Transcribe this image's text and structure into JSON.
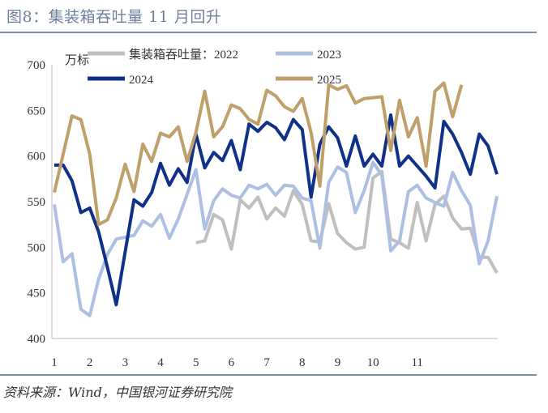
{
  "title": "图8：集装箱吞吐量 11 月回升",
  "source": "资料来源：Wind，中国银河证券研究院",
  "chart_data": {
    "type": "line",
    "title": "",
    "ylabel": "万标",
    "xlabel": "",
    "ylim": [
      400,
      700
    ],
    "yticks": [
      "400",
      "450",
      "500",
      "550",
      "600",
      "650",
      "700"
    ],
    "xtick_labels": [
      "1",
      "2",
      "3",
      "4",
      "5",
      "6",
      "7",
      "8",
      "9",
      "10",
      "11"
    ],
    "xtick_week_index": [
      0,
      4,
      8,
      12,
      16,
      20,
      24,
      28,
      32,
      36,
      41
    ],
    "x_unit": "week of year",
    "grid": false,
    "legend_position": "top",
    "series": [
      {
        "name": "集装箱吞吐量：2022",
        "color": "#bfbfbf",
        "start_week_index": 16,
        "values": [
          505,
          507,
          536,
          530,
          498,
          552,
          543,
          555,
          531,
          543,
          534,
          562,
          547,
          507,
          506,
          548,
          515,
          505,
          498,
          500,
          576,
          583,
          509,
          505,
          499,
          549,
          507,
          547,
          556,
          532,
          520,
          521,
          489,
          489,
          472
        ]
      },
      {
        "name": "2023",
        "color": "#adc0e4",
        "start_week_index": 0,
        "values": [
          547,
          484,
          493,
          432,
          425,
          465,
          492,
          509,
          511,
          513,
          529,
          523,
          536,
          510,
          531,
          558,
          585,
          520,
          551,
          564,
          557,
          554,
          568,
          564,
          569,
          557,
          568,
          567,
          554,
          551,
          499,
          571,
          588,
          582,
          538,
          562,
          593,
          579,
          496,
          507,
          561,
          568,
          554,
          549,
          545,
          582,
          562,
          546,
          482,
          507,
          556
        ]
      },
      {
        "name": "2024",
        "color": "#0f3189",
        "start_week_index": 0,
        "values": [
          590,
          590,
          573,
          538,
          543,
          517,
          478,
          437,
          495,
          552,
          545,
          560,
          592,
          568,
          586,
          571,
          624,
          587,
          604,
          595,
          617,
          585,
          635,
          627,
          637,
          631,
          618,
          640,
          629,
          555,
          613,
          632,
          620,
          589,
          622,
          589,
          602,
          589,
          645,
          589,
          600,
          589,
          578,
          565,
          638,
          624,
          604,
          580,
          624,
          611,
          580
        ]
      },
      {
        "name": "2025",
        "color": "#bf9f6a",
        "start_week_index": 0,
        "values": [
          560,
          602,
          644,
          640,
          602,
          525,
          530,
          554,
          591,
          561,
          613,
          594,
          625,
          621,
          632,
          594,
          626,
          671,
          621,
          632,
          656,
          652,
          640,
          635,
          672,
          666,
          654,
          649,
          663,
          626,
          567,
          678,
          673,
          677,
          658,
          663,
          664,
          665,
          606,
          661,
          621,
          642,
          589,
          671,
          680,
          643,
          678
        ]
      }
    ]
  }
}
